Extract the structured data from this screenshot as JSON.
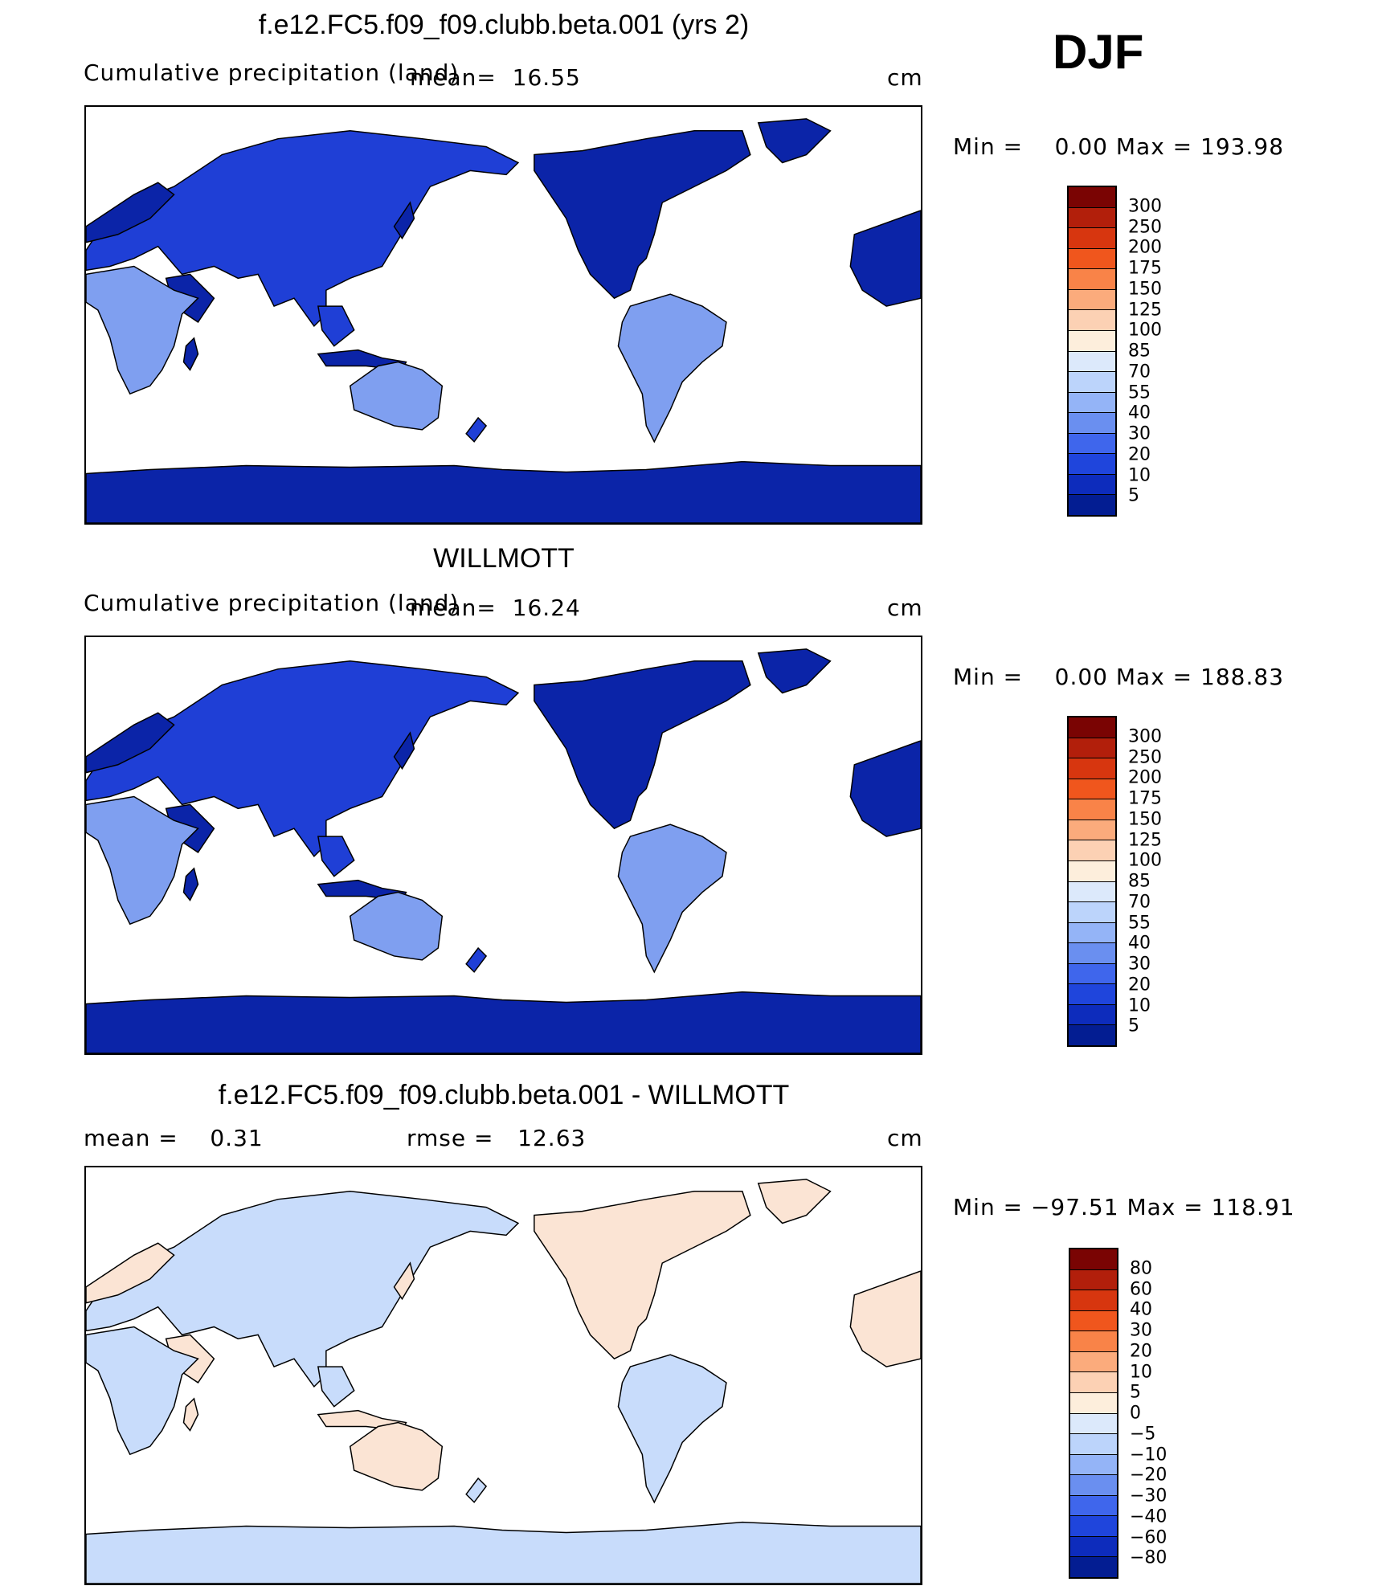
{
  "season": "DJF",
  "panels": [
    {
      "title": "f.e12.FC5.f09_f09.clubb.beta.001 (yrs 2)",
      "subtitle_left": "Cumulative precipitation (land)",
      "subtitle_mid": "mean=  16.55",
      "units": "cm",
      "minmax": "Min =    0.00 Max = 193.98",
      "palette": "abs",
      "colorbar_labels": [
        "300",
        "250",
        "200",
        "175",
        "150",
        "125",
        "100",
        "85",
        "70",
        "55",
        "40",
        "30",
        "20",
        "10",
        "5"
      ]
    },
    {
      "title": "WILLMOTT",
      "subtitle_left": "Cumulative precipitation (land)",
      "subtitle_mid": "mean=  16.24",
      "units": "cm",
      "minmax": "Min =    0.00 Max = 188.83",
      "palette": "abs",
      "colorbar_labels": [
        "300",
        "250",
        "200",
        "175",
        "150",
        "125",
        "100",
        "85",
        "70",
        "55",
        "40",
        "30",
        "20",
        "10",
        "5"
      ]
    },
    {
      "title": "f.e12.FC5.f09_f09.clubb.beta.001 - WILLMOTT",
      "subtitle_left": "mean =    0.31",
      "subtitle_mid": "rmse =   12.63",
      "units": "cm",
      "minmax": "Min = −97.51 Max = 118.91",
      "palette": "diff",
      "colorbar_labels": [
        "80",
        "60",
        "40",
        "30",
        "20",
        "10",
        "5",
        "0",
        "−5",
        "−10",
        "−20",
        "−30",
        "−40",
        "−60",
        "−80"
      ]
    }
  ],
  "colors": {
    "abs_scale": [
      "#7a0403",
      "#b21f0b",
      "#d7360f",
      "#f0561d",
      "#f98348",
      "#fbab7c",
      "#fcd1b4",
      "#fdeedc",
      "#dce9fb",
      "#bcd4fb",
      "#94b4f7",
      "#6a8ff0",
      "#3f66ec",
      "#1f45dc",
      "#0d2cbc",
      "#031d92"
    ],
    "diff_scale": [
      "#7a0403",
      "#b21f0b",
      "#d7360f",
      "#f0561d",
      "#f98348",
      "#fbab7c",
      "#fcd1b4",
      "#fdeedc",
      "#dce9fb",
      "#bcd4fb",
      "#94b4f7",
      "#6a8ff0",
      "#3f66ec",
      "#1f45dc",
      "#0d2cbc",
      "#031d92"
    ],
    "land_blue_dark": "#0b24a8",
    "land_blue_mid": "#1f3fd6",
    "land_blue_light": "#7f9ff0",
    "land_diff_pale": "#fbe4d4",
    "land_diff_blue": "#c8dcfb",
    "ocean": "#ffffff"
  }
}
